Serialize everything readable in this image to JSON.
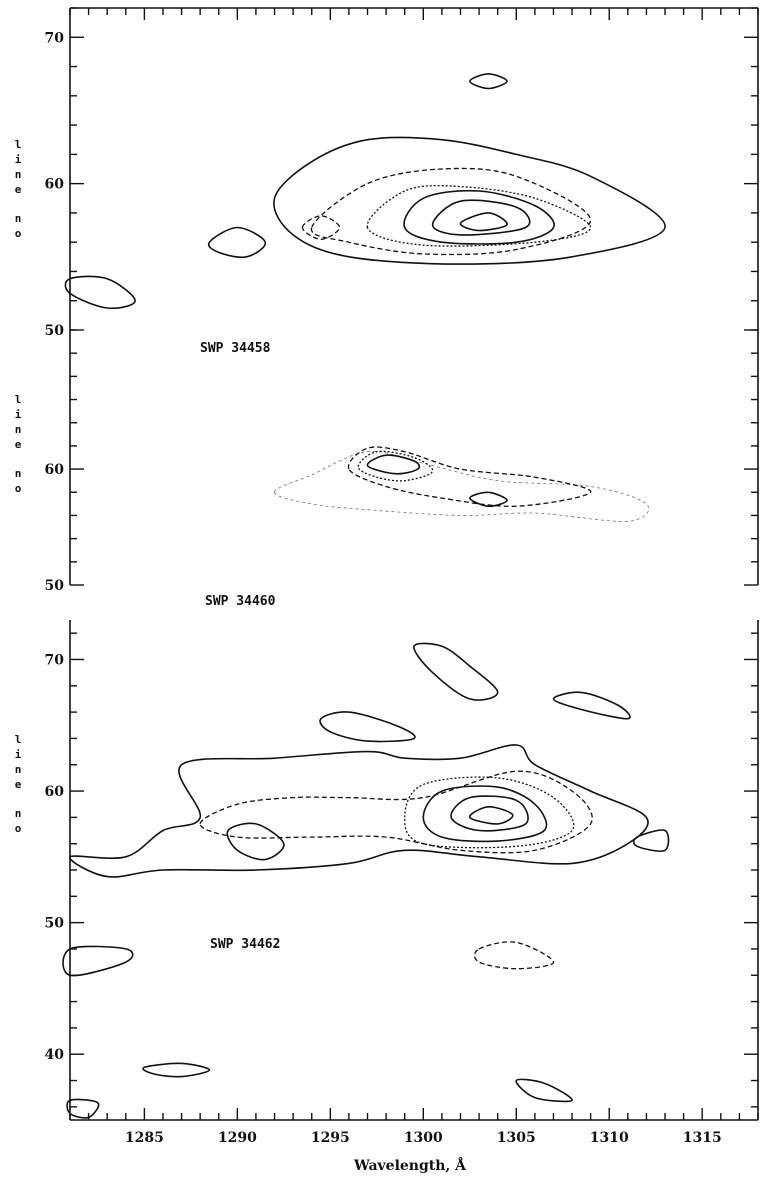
{
  "chart_data": {
    "type": "contour",
    "xlabel": "Wavelength, Å",
    "xlim": [
      1281,
      1318
    ],
    "x_ticks": [
      1285,
      1290,
      1295,
      1300,
      1305,
      1310,
      1315
    ],
    "panels": [
      {
        "label": "SWP 34458",
        "ylabel": "line no",
        "ylim": [
          50,
          72
        ],
        "y_ticks": [
          50,
          60,
          70
        ],
        "peak": {
          "wavelength": 1303,
          "line": 57
        },
        "contours": [
          {
            "style": "solid",
            "points": [
              [
                1292,
                59
              ],
              [
                1294,
                61.5
              ],
              [
                1297,
                63
              ],
              [
                1301,
                63
              ],
              [
                1305,
                62
              ],
              [
                1309,
                60.5
              ],
              [
                1313,
                57
              ],
              [
                1308,
                55
              ],
              [
                1302,
                54.5
              ],
              [
                1296,
                55
              ],
              [
                1293,
                56.5
              ]
            ]
          },
          {
            "style": "dashed",
            "points": [
              [
                1294,
                57
              ],
              [
                1297,
                60
              ],
              [
                1301,
                61
              ],
              [
                1305,
                60.5
              ],
              [
                1309,
                57.5
              ],
              [
                1305,
                55.5
              ],
              [
                1300,
                55.2
              ],
              [
                1296,
                56
              ]
            ]
          },
          {
            "style": "dotted",
            "points": [
              [
                1297,
                57
              ],
              [
                1299,
                59.5
              ],
              [
                1302,
                59.8
              ],
              [
                1306,
                59
              ],
              [
                1309,
                57
              ],
              [
                1306,
                56
              ],
              [
                1300,
                55.8
              ]
            ]
          },
          {
            "style": "solid",
            "points": [
              [
                1299,
                57
              ],
              [
                1300,
                59
              ],
              [
                1303,
                59.5
              ],
              [
                1306,
                58.5
              ],
              [
                1307,
                57
              ],
              [
                1305,
                56
              ],
              [
                1301,
                56
              ]
            ]
          },
          {
            "style": "solid",
            "points": [
              [
                1300.5,
                57.2
              ],
              [
                1302,
                58.8
              ],
              [
                1305,
                58.4
              ],
              [
                1305.5,
                57
              ],
              [
                1302,
                56.5
              ]
            ]
          },
          {
            "style": "solid",
            "points": [
              [
                1302,
                57.3
              ],
              [
                1303.5,
                58
              ],
              [
                1304.5,
                57.2
              ],
              [
                1303,
                56.8
              ]
            ]
          },
          {
            "style": "solid",
            "points": [
              [
                1288.5,
                56
              ],
              [
                1290,
                57
              ],
              [
                1291.5,
                56
              ],
              [
                1290.5,
                55
              ],
              [
                1289,
                55.3
              ]
            ]
          },
          {
            "style": "dashed",
            "points": [
              [
                1293.5,
                57
              ],
              [
                1294.5,
                57.8
              ],
              [
                1295.5,
                57
              ],
              [
                1294.5,
                56.2
              ]
            ]
          },
          {
            "style": "solid",
            "points": [
              [
                1302.5,
                67
              ],
              [
                1303.5,
                67.5
              ],
              [
                1304.5,
                67
              ],
              [
                1303.5,
                66.5
              ]
            ]
          },
          {
            "style": "solid",
            "points": [
              [
                1281,
                53.5
              ],
              [
                1283,
                53.5
              ],
              [
                1284.5,
                52
              ],
              [
                1283,
                51.5
              ],
              [
                1281,
                52.5
              ]
            ]
          }
        ]
      },
      {
        "label": "SWP 34460",
        "ylabel": "line no",
        "ylim": [
          50,
          72
        ],
        "y_ticks": [
          50,
          60
        ],
        "peak": {
          "wavelength": 1298,
          "line": 60
        },
        "contours": [
          {
            "style": "faint",
            "points": [
              [
                1292,
                58
              ],
              [
                1294,
                57
              ],
              [
                1297,
                56.5
              ],
              [
                1302,
                56
              ],
              [
                1306,
                56.2
              ],
              [
                1311,
                55.5
              ],
              [
                1312,
                57
              ],
              [
                1309,
                58.5
              ],
              [
                1304,
                59
              ],
              [
                1300,
                60.5
              ],
              [
                1297,
                61.5
              ],
              [
                1294,
                59.5
              ]
            ]
          },
          {
            "style": "dashed",
            "points": [
              [
                1296,
                60
              ],
              [
                1297,
                61.8
              ],
              [
                1299,
                61.5
              ],
              [
                1302,
                60
              ],
              [
                1306,
                59.3
              ],
              [
                1309,
                58
              ],
              [
                1305,
                56.8
              ],
              [
                1301,
                57.5
              ],
              [
                1298,
                58.5
              ]
            ]
          },
          {
            "style": "dotted",
            "points": [
              [
                1296.5,
                60.2
              ],
              [
                1297.5,
                61.5
              ],
              [
                1299.5,
                61
              ],
              [
                1300.5,
                59.8
              ],
              [
                1299,
                59
              ],
              [
                1297.5,
                59.3
              ]
            ]
          },
          {
            "style": "solid",
            "points": [
              [
                1297,
                60.3
              ],
              [
                1298,
                61.2
              ],
              [
                1299.5,
                60.7
              ],
              [
                1299.7,
                60
              ],
              [
                1298.5,
                59.6
              ]
            ]
          },
          {
            "style": "solid",
            "points": [
              [
                1302.5,
                57.5
              ],
              [
                1303.5,
                58
              ],
              [
                1304.5,
                57.3
              ],
              [
                1303.5,
                56.8
              ]
            ]
          }
        ]
      },
      {
        "label": "SWP 34462",
        "ylabel": "line no",
        "ylim": [
          35,
          73
        ],
        "y_ticks": [
          40,
          50,
          60,
          70
        ],
        "peak": {
          "wavelength": 1303,
          "line": 58
        },
        "contours": [
          {
            "style": "solid",
            "points": [
              [
                1281,
                55
              ],
              [
                1284,
                55
              ],
              [
                1286,
                57
              ],
              [
                1288,
                58
              ],
              [
                1287,
                62
              ],
              [
                1292,
                62.5
              ],
              [
                1297,
                63
              ],
              [
                1299,
                62.5
              ],
              [
                1302,
                62.5
              ],
              [
                1305,
                63.5
              ],
              [
                1306,
                62
              ],
              [
                1309,
                60
              ],
              [
                1312,
                58
              ],
              [
                1311,
                56
              ],
              [
                1308,
                54.5
              ],
              [
                1303,
                55
              ],
              [
                1299,
                55.5
              ],
              [
                1296,
                54.5
              ],
              [
                1291,
                54
              ],
              [
                1286,
                54
              ],
              [
                1283,
                53.5
              ]
            ]
          },
          {
            "style": "dashed",
            "points": [
              [
                1288,
                57.5
              ],
              [
                1290,
                59
              ],
              [
                1293,
                59.5
              ],
              [
                1296,
                59.5
              ],
              [
                1300,
                59.5
              ],
              [
                1305,
                61.5
              ],
              [
                1308,
                60
              ],
              [
                1309,
                57.5
              ],
              [
                1306,
                55.5
              ],
              [
                1302,
                55.5
              ],
              [
                1298,
                56.5
              ],
              [
                1294,
                56.5
              ],
              [
                1290,
                56.5
              ]
            ]
          },
          {
            "style": "dotted",
            "points": [
              [
                1299,
                58
              ],
              [
                1300,
                60.5
              ],
              [
                1304,
                61
              ],
              [
                1307,
                59.5
              ],
              [
                1308,
                57
              ],
              [
                1305,
                55.8
              ],
              [
                1300,
                56
              ]
            ]
          },
          {
            "style": "solid",
            "points": [
              [
                1300,
                58
              ],
              [
                1301,
                60
              ],
              [
                1304,
                60.3
              ],
              [
                1306,
                59
              ],
              [
                1306.5,
                57
              ],
              [
                1304,
                56.2
              ],
              [
                1301,
                56.5
              ]
            ]
          },
          {
            "style": "solid",
            "points": [
              [
                1301.5,
                58
              ],
              [
                1302.5,
                59.5
              ],
              [
                1305,
                59.3
              ],
              [
                1305.5,
                57.5
              ],
              [
                1303,
                57
              ]
            ]
          },
          {
            "style": "solid",
            "points": [
              [
                1302.5,
                58
              ],
              [
                1303.5,
                58.8
              ],
              [
                1304.8,
                58.2
              ],
              [
                1304,
                57.5
              ]
            ]
          },
          {
            "style": "solid",
            "points": [
              [
                1299.5,
                71
              ],
              [
                1301,
                71
              ],
              [
                1302.5,
                69.5
              ],
              [
                1304,
                67.5
              ],
              [
                1302.5,
                67
              ],
              [
                1300.5,
                69
              ]
            ]
          },
          {
            "style": "solid",
            "points": [
              [
                1294.5,
                65.5
              ],
              [
                1296,
                66
              ],
              [
                1298.5,
                65
              ],
              [
                1299.5,
                64
              ],
              [
                1297,
                63.8
              ],
              [
                1295,
                64.5
              ]
            ]
          },
          {
            "style": "solid",
            "points": [
              [
                1307,
                67
              ],
              [
                1308.5,
                67.5
              ],
              [
                1310.5,
                66.5
              ],
              [
                1311,
                65.5
              ],
              [
                1308.5,
                66.2
              ]
            ]
          },
          {
            "style": "solid",
            "points": [
              [
                1289.5,
                57
              ],
              [
                1291,
                57.5
              ],
              [
                1292.5,
                56
              ],
              [
                1291.5,
                54.8
              ],
              [
                1290,
                55.5
              ]
            ]
          },
          {
            "style": "solid",
            "points": [
              [
                1311.5,
                56.5
              ],
              [
                1313,
                57
              ],
              [
                1313,
                55.5
              ],
              [
                1311.5,
                55.8
              ]
            ]
          },
          {
            "style": "solid",
            "points": [
              [
                1285,
                39
              ],
              [
                1287,
                39.3
              ],
              [
                1288.5,
                38.8
              ],
              [
                1287,
                38.3
              ],
              [
                1285.5,
                38.5
              ]
            ]
          },
          {
            "style": "solid",
            "points": [
              [
                1305,
                38
              ],
              [
                1306.5,
                37.8
              ],
              [
                1308,
                36.5
              ],
              [
                1306,
                36.7
              ]
            ]
          },
          {
            "style": "dashed",
            "points": [
              [
                1303,
                48
              ],
              [
                1305,
                48.5
              ],
              [
                1307,
                47
              ],
              [
                1305,
                46.5
              ],
              [
                1303,
                47
              ]
            ]
          },
          {
            "style": "solid",
            "points": [
              [
                1281,
                48
              ],
              [
                1284,
                48
              ],
              [
                1284,
                47
              ],
              [
                1281,
                46
              ]
            ]
          },
          {
            "style": "solid",
            "points": [
              [
                1281,
                36.5
              ],
              [
                1282.5,
                36.3
              ],
              [
                1282,
                35.2
              ],
              [
                1281,
                35.5
              ]
            ]
          }
        ]
      }
    ]
  }
}
